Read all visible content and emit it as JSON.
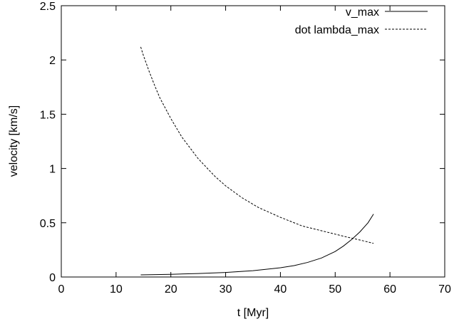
{
  "chart_data": {
    "type": "line",
    "title": "",
    "xlabel": "t [Myr]",
    "ylabel": "velocity [km/s]",
    "xlim": [
      0,
      70
    ],
    "ylim": [
      0,
      2.5
    ],
    "xticks": [
      0,
      10,
      20,
      30,
      40,
      50,
      60,
      70
    ],
    "xtick_labels": [
      "0",
      "10",
      "20",
      "30",
      "40",
      "50",
      "60",
      "70"
    ],
    "yticks": [
      0,
      0.5,
      1,
      1.5,
      2,
      2.5
    ],
    "ytick_labels": [
      "0",
      "0.5",
      "1",
      "1.5",
      "2",
      "2.5"
    ],
    "grid": false,
    "legend_position": "top-right",
    "series": [
      {
        "name": "v_max",
        "line_style": "solid",
        "color": "#000000",
        "x": [
          14.5,
          20,
          25,
          30,
          35,
          40,
          42.5,
          45,
          47.5,
          50,
          51.5,
          53,
          54.5,
          56,
          57
        ],
        "y": [
          0.02,
          0.025,
          0.032,
          0.042,
          0.058,
          0.085,
          0.105,
          0.135,
          0.175,
          0.235,
          0.285,
          0.345,
          0.415,
          0.5,
          0.58
        ]
      },
      {
        "name": "dot lambda_max",
        "line_style": "dashed",
        "color": "#000000",
        "x": [
          14.5,
          15,
          16,
          17,
          18,
          20,
          22,
          25,
          28,
          30,
          33,
          36,
          40,
          44,
          48,
          52,
          55,
          57
        ],
        "y": [
          2.12,
          2.04,
          1.9,
          1.77,
          1.65,
          1.46,
          1.29,
          1.09,
          0.93,
          0.84,
          0.73,
          0.64,
          0.55,
          0.47,
          0.42,
          0.37,
          0.335,
          0.31
        ]
      }
    ]
  }
}
